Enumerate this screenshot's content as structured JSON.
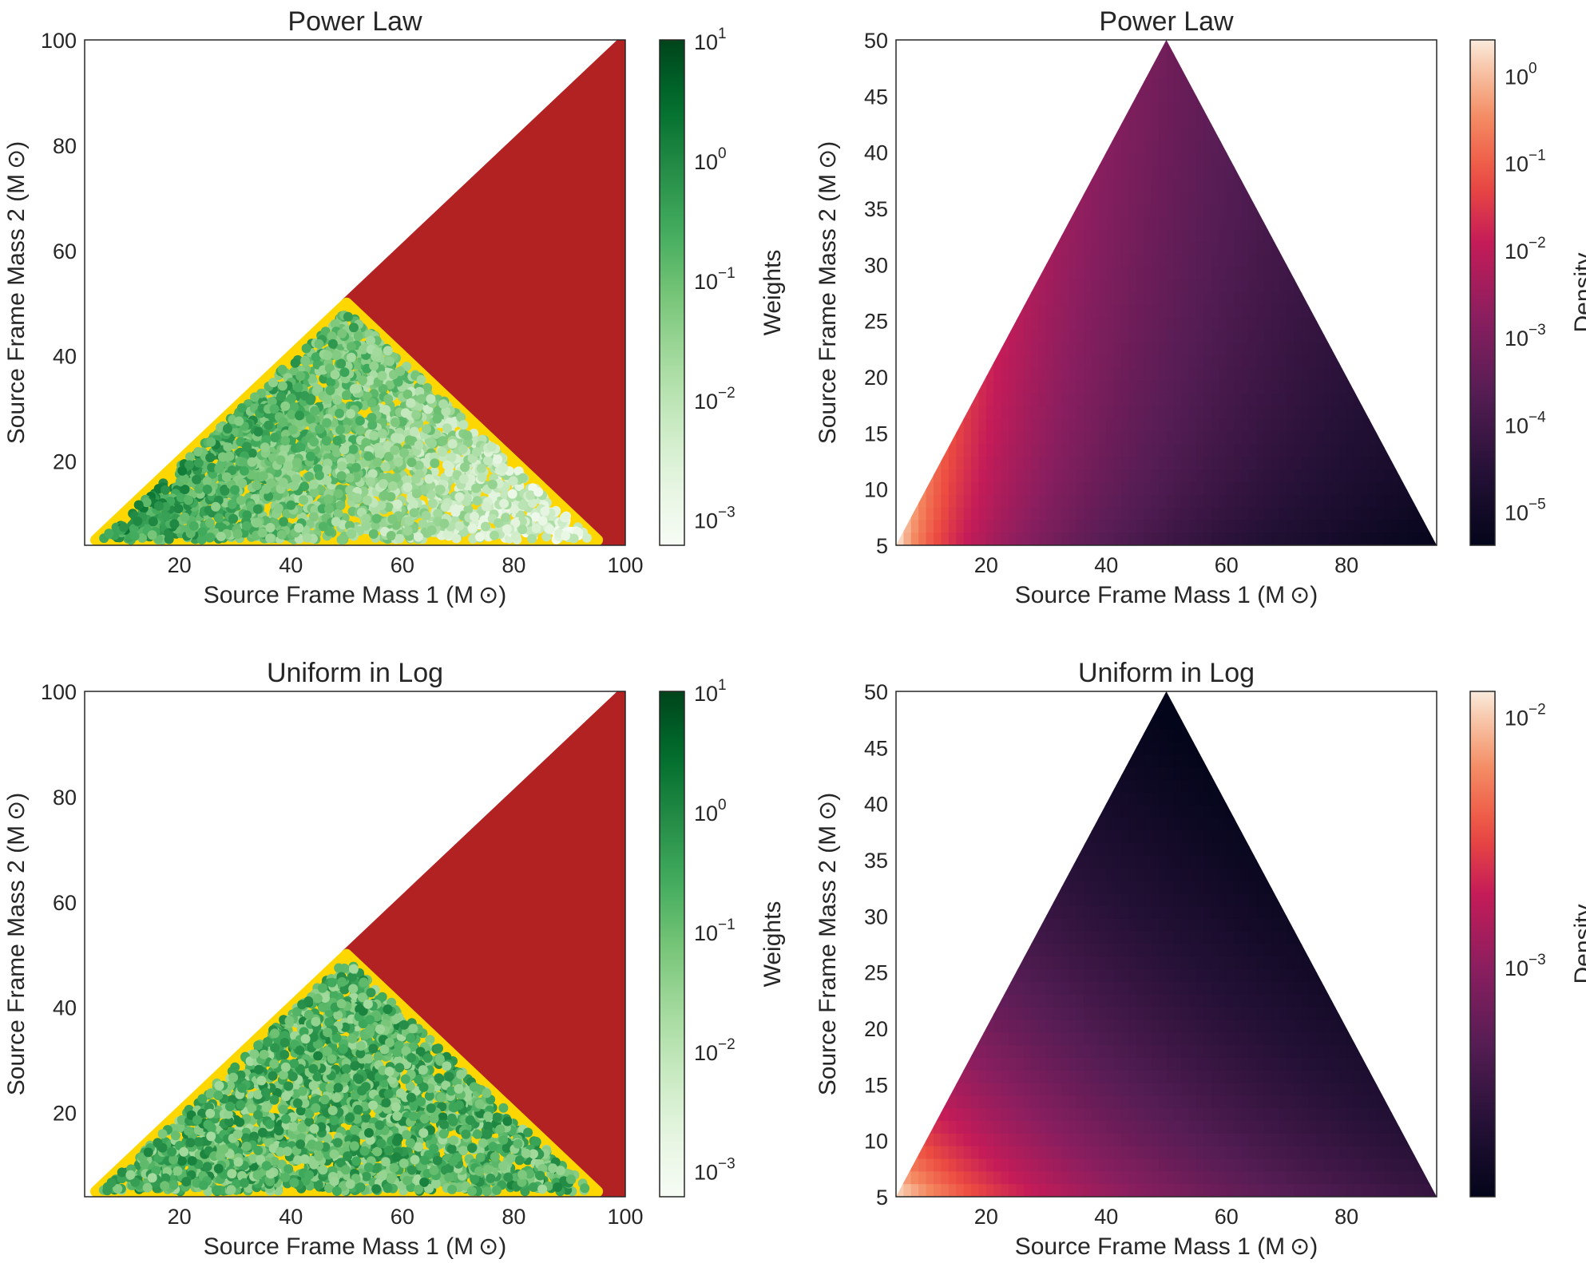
{
  "chart_data": [
    {
      "type": "scatter",
      "title": "Power Law",
      "xlabel": "Source Frame Mass 1 (M ⊙)",
      "ylabel": "Source Frame Mass 2 (M ⊙)",
      "xlim": [
        3,
        100
      ],
      "ylim": [
        4,
        100
      ],
      "xticks": [
        "20",
        "40",
        "60",
        "80",
        "100"
      ],
      "yticks": [
        "20",
        "40",
        "60",
        "80",
        "100"
      ],
      "regions": [
        {
          "name": "excluded",
          "color": "#b22222",
          "polygon": [
            [
              50,
              50
            ],
            [
              100,
              100
            ],
            [
              100,
              5
            ],
            [
              95,
              5
            ]
          ]
        },
        {
          "name": "allowed",
          "color": "#ffd700",
          "polygon": [
            [
              5,
              5
            ],
            [
              50,
              50
            ],
            [
              95,
              5
            ]
          ]
        }
      ],
      "points": {
        "colormap": "Greens",
        "count": 2600,
        "trend": "weights decrease with Mass 1"
      },
      "colorbar": {
        "label": "Weights",
        "scale": "log",
        "range": [
          0.0006,
          10
        ],
        "ticks": [
          {
            "base": "10",
            "exp": "1",
            "value": 10
          },
          {
            "base": "10",
            "exp": "0",
            "value": 1
          },
          {
            "base": "10",
            "exp": "−1",
            "value": 0.1
          },
          {
            "base": "10",
            "exp": "−2",
            "value": 0.01
          },
          {
            "base": "10",
            "exp": "−3",
            "value": 0.001
          }
        ]
      }
    },
    {
      "type": "heatmap",
      "title": "Power Law",
      "xlabel": "Source Frame Mass 1 (M ⊙)",
      "ylabel": "Source Frame Mass 2 (M ⊙)",
      "xlim": [
        5,
        95
      ],
      "ylim": [
        5,
        50
      ],
      "xticks": [
        "20",
        "40",
        "60",
        "80"
      ],
      "yticks": [
        "5",
        "10",
        "15",
        "20",
        "25",
        "30",
        "35",
        "40",
        "45",
        "50"
      ],
      "domain": [
        [
          5,
          5
        ],
        [
          50,
          50
        ],
        [
          95,
          5
        ]
      ],
      "colorbar": {
        "label": "Density",
        "scale": "log",
        "colormap": "rocket",
        "range": [
          4e-06,
          2.5
        ],
        "ticks": [
          {
            "base": "10",
            "exp": "0",
            "value": 1
          },
          {
            "base": "10",
            "exp": "−1",
            "value": 0.1
          },
          {
            "base": "10",
            "exp": "−2",
            "value": 0.01
          },
          {
            "base": "10",
            "exp": "−3",
            "value": 0.001
          },
          {
            "base": "10",
            "exp": "−4",
            "value": 0.0001
          },
          {
            "base": "10",
            "exp": "−5",
            "value": 1e-05
          }
        ]
      }
    },
    {
      "type": "scatter",
      "title": "Uniform in Log",
      "xlabel": "Source Frame Mass 1 (M ⊙)",
      "ylabel": "Source Frame Mass 2 (M ⊙)",
      "xlim": [
        3,
        100
      ],
      "ylim": [
        4,
        100
      ],
      "xticks": [
        "20",
        "40",
        "60",
        "80",
        "100"
      ],
      "yticks": [
        "20",
        "40",
        "60",
        "80",
        "100"
      ],
      "regions": [
        {
          "name": "excluded",
          "color": "#b22222",
          "polygon": [
            [
              50,
              50
            ],
            [
              100,
              100
            ],
            [
              100,
              5
            ],
            [
              95,
              5
            ]
          ]
        },
        {
          "name": "allowed",
          "color": "#ffd700",
          "polygon": [
            [
              5,
              5
            ],
            [
              50,
              50
            ],
            [
              95,
              5
            ]
          ]
        }
      ],
      "points": {
        "colormap": "Greens",
        "count": 2600,
        "trend": "weights mostly 0.1 to 1"
      },
      "colorbar": {
        "label": "Weights",
        "scale": "log",
        "range": [
          0.0006,
          10
        ],
        "ticks": [
          {
            "base": "10",
            "exp": "1",
            "value": 10
          },
          {
            "base": "10",
            "exp": "0",
            "value": 1
          },
          {
            "base": "10",
            "exp": "−1",
            "value": 0.1
          },
          {
            "base": "10",
            "exp": "−2",
            "value": 0.01
          },
          {
            "base": "10",
            "exp": "−3",
            "value": 0.001
          }
        ]
      }
    },
    {
      "type": "heatmap",
      "title": "Uniform in Log",
      "xlabel": "Source Frame Mass 1 (M ⊙)",
      "ylabel": "Source Frame Mass 2 (M ⊙)",
      "xlim": [
        5,
        95
      ],
      "ylim": [
        5,
        50
      ],
      "xticks": [
        "20",
        "40",
        "60",
        "80"
      ],
      "yticks": [
        "5",
        "10",
        "15",
        "20",
        "25",
        "30",
        "35",
        "40",
        "45",
        "50"
      ],
      "domain": [
        [
          5,
          5
        ],
        [
          50,
          50
        ],
        [
          95,
          5
        ]
      ],
      "colorbar": {
        "label": "Density",
        "scale": "log",
        "colormap": "rocket",
        "range": [
          0.00012,
          0.0125
        ],
        "ticks": [
          {
            "base": "10",
            "exp": "−2",
            "value": 0.01
          },
          {
            "base": "10",
            "exp": "−3",
            "value": 0.001
          }
        ]
      }
    }
  ]
}
